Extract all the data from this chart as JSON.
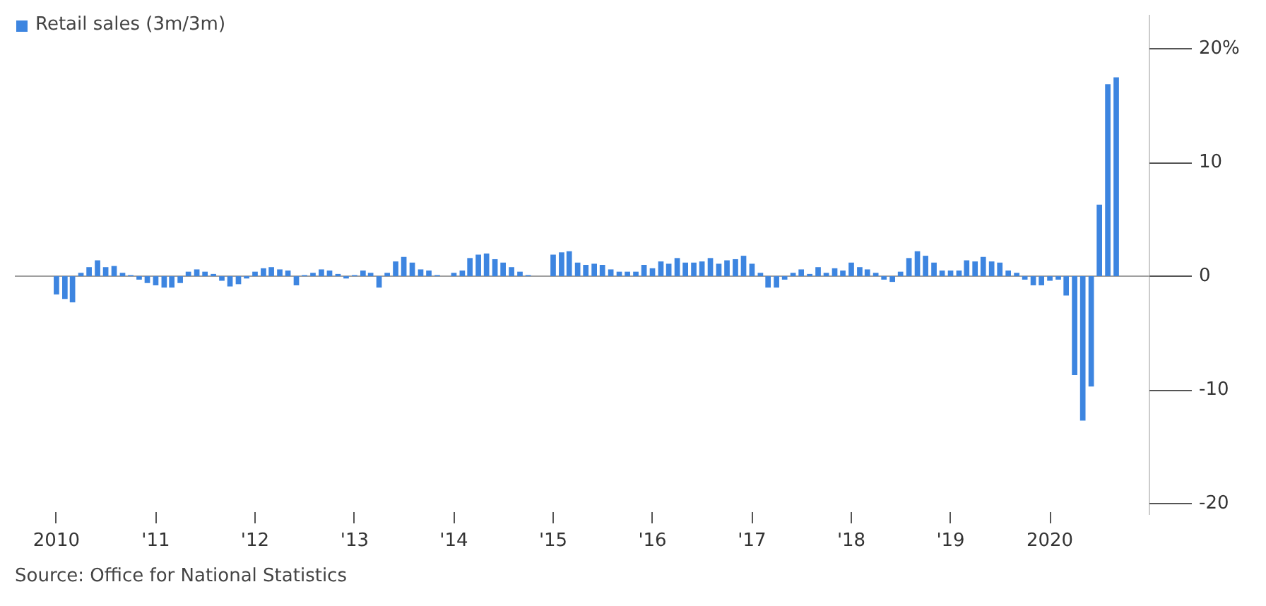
{
  "chart_data": {
    "type": "bar",
    "x": [
      "2010-01",
      "2010-02",
      "2010-03",
      "2010-04",
      "2010-05",
      "2010-06",
      "2010-07",
      "2010-08",
      "2010-09",
      "2010-10",
      "2010-11",
      "2010-12",
      "2011-01",
      "2011-02",
      "2011-03",
      "2011-04",
      "2011-05",
      "2011-06",
      "2011-07",
      "2011-08",
      "2011-09",
      "2011-10",
      "2011-11",
      "2011-12",
      "2012-01",
      "2012-02",
      "2012-03",
      "2012-04",
      "2012-05",
      "2012-06",
      "2012-07",
      "2012-08",
      "2012-09",
      "2012-10",
      "2012-11",
      "2012-12",
      "2013-01",
      "2013-02",
      "2013-03",
      "2013-04",
      "2013-05",
      "2013-06",
      "2013-07",
      "2013-08",
      "2013-09",
      "2013-10",
      "2013-11",
      "2013-12",
      "2014-01",
      "2014-02",
      "2014-03",
      "2014-04",
      "2014-05",
      "2014-06",
      "2014-07",
      "2014-08",
      "2014-09",
      "2014-10",
      "2014-11",
      "2014-12",
      "2015-01",
      "2015-02",
      "2015-03",
      "2015-04",
      "2015-05",
      "2015-06",
      "2015-07",
      "2015-08",
      "2015-09",
      "2015-10",
      "2015-11",
      "2015-12",
      "2016-01",
      "2016-02",
      "2016-03",
      "2016-04",
      "2016-05",
      "2016-06",
      "2016-07",
      "2016-08",
      "2016-09",
      "2016-10",
      "2016-11",
      "2016-12",
      "2017-01",
      "2017-02",
      "2017-03",
      "2017-04",
      "2017-05",
      "2017-06",
      "2017-07",
      "2017-08",
      "2017-09",
      "2017-10",
      "2017-11",
      "2017-12",
      "2018-01",
      "2018-02",
      "2018-03",
      "2018-04",
      "2018-05",
      "2018-06",
      "2018-07",
      "2018-08",
      "2018-09",
      "2018-10",
      "2018-11",
      "2018-12",
      "2019-01",
      "2019-02",
      "2019-03",
      "2019-04",
      "2019-05",
      "2019-06",
      "2019-07",
      "2019-08",
      "2019-09",
      "2019-10",
      "2019-11",
      "2019-12",
      "2020-01",
      "2020-02",
      "2020-03",
      "2020-04",
      "2020-05",
      "2020-06",
      "2020-07",
      "2020-08",
      "2020-09"
    ],
    "series": [
      {
        "name": "Retail sales (3m/3m)",
        "color": "#3d85e0",
        "values": [
          -1.6,
          -2.0,
          -2.3,
          0.3,
          0.8,
          1.4,
          0.8,
          0.9,
          0.3,
          0.1,
          -0.3,
          -0.6,
          -0.8,
          -1.0,
          -1.0,
          -0.6,
          0.4,
          0.6,
          0.4,
          0.2,
          -0.4,
          -0.9,
          -0.7,
          -0.2,
          0.4,
          0.7,
          0.8,
          0.6,
          0.5,
          -0.8,
          0.1,
          0.3,
          0.6,
          0.5,
          0.2,
          -0.2,
          0.1,
          0.5,
          0.3,
          -1.0,
          0.3,
          1.3,
          1.7,
          1.2,
          0.6,
          0.5,
          0.1,
          0.0,
          0.3,
          0.5,
          1.6,
          1.9,
          2.0,
          1.5,
          1.2,
          0.8,
          0.4,
          0.1,
          0.0,
          0.0,
          1.9,
          2.1,
          2.2,
          1.2,
          1.0,
          1.1,
          1.0,
          0.6,
          0.4,
          0.4,
          0.4,
          1.0,
          0.7,
          1.3,
          1.1,
          1.6,
          1.2,
          1.2,
          1.3,
          1.6,
          1.1,
          1.4,
          1.5,
          1.8,
          1.1,
          0.3,
          -1.0,
          -1.0,
          -0.3,
          0.3,
          0.6,
          0.2,
          0.8,
          0.3,
          0.7,
          0.5,
          1.2,
          0.8,
          0.6,
          0.3,
          -0.3,
          -0.5,
          0.4,
          1.6,
          2.2,
          1.8,
          1.2,
          0.5,
          0.5,
          0.5,
          1.4,
          1.3,
          1.7,
          1.3,
          1.2,
          0.5,
          0.3,
          -0.3,
          -0.8,
          -0.8,
          -0.4,
          -0.3,
          -1.7,
          -8.7,
          -12.7,
          -9.7,
          6.3,
          16.9,
          17.5
        ]
      }
    ],
    "xlim": [
      "2009-08",
      "2021-01"
    ],
    "xticks": [
      {
        "value": "2010",
        "label": "2010"
      },
      {
        "value": "2011",
        "label": "'11"
      },
      {
        "value": "2012",
        "label": "'12"
      },
      {
        "value": "2013",
        "label": "'13"
      },
      {
        "value": "2014",
        "label": "'14"
      },
      {
        "value": "2015",
        "label": "'15"
      },
      {
        "value": "2016",
        "label": "'16"
      },
      {
        "value": "2017",
        "label": "'17"
      },
      {
        "value": "2018",
        "label": "'18"
      },
      {
        "value": "2019",
        "label": "'19"
      },
      {
        "value": "2020",
        "label": "2020"
      }
    ],
    "ylim": [
      -21,
      23
    ],
    "yticks": [
      {
        "value": 20,
        "label": "20%"
      },
      10,
      0,
      -10,
      -20
    ],
    "ref_lines": [
      {
        "axis": "y",
        "value": 0,
        "label": null,
        "color": "#a0a0a0"
      }
    ],
    "grid": false,
    "legend": "top left",
    "annotations": [
      "Source: Office for National Statistics"
    ]
  }
}
